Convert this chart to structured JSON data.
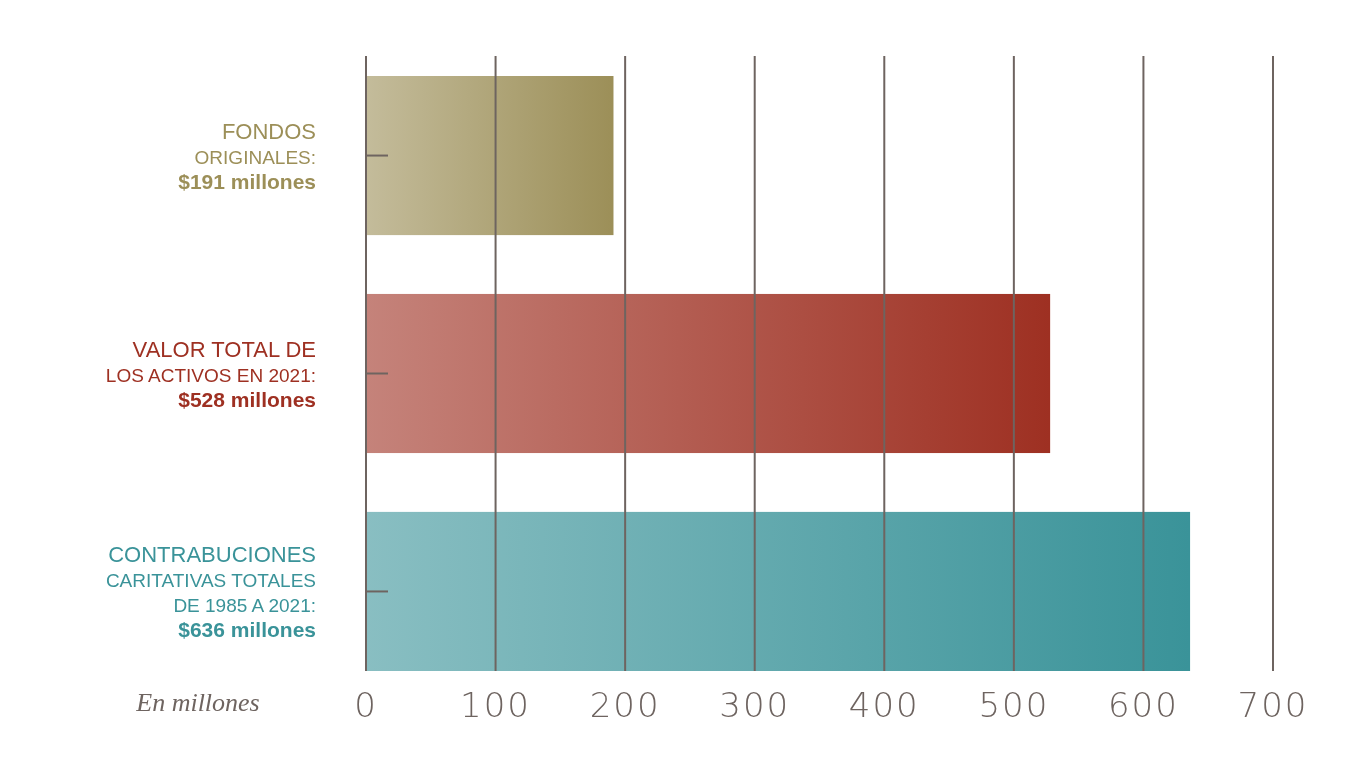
{
  "chart_data": {
    "type": "bar",
    "orientation": "horizontal",
    "categories": [
      "FONDOS ORIGINALES: $191 millones",
      "VALOR TOTAL DE LOS ACTIVOS EN 2021: $528 millones",
      "CONTRABUCIONES CARITATIVAS TOTALES DE 1985 A 2021: $636 millones"
    ],
    "values": [
      191,
      528,
      636
    ],
    "colors": [
      "#9c8f58",
      "#9e3022",
      "#3a9399"
    ],
    "xlim": [
      0,
      700
    ],
    "xticks": [
      0,
      100,
      200,
      300,
      400,
      500,
      600,
      700
    ],
    "grid": "x",
    "annotations": [
      "En millones"
    ]
  }
}
